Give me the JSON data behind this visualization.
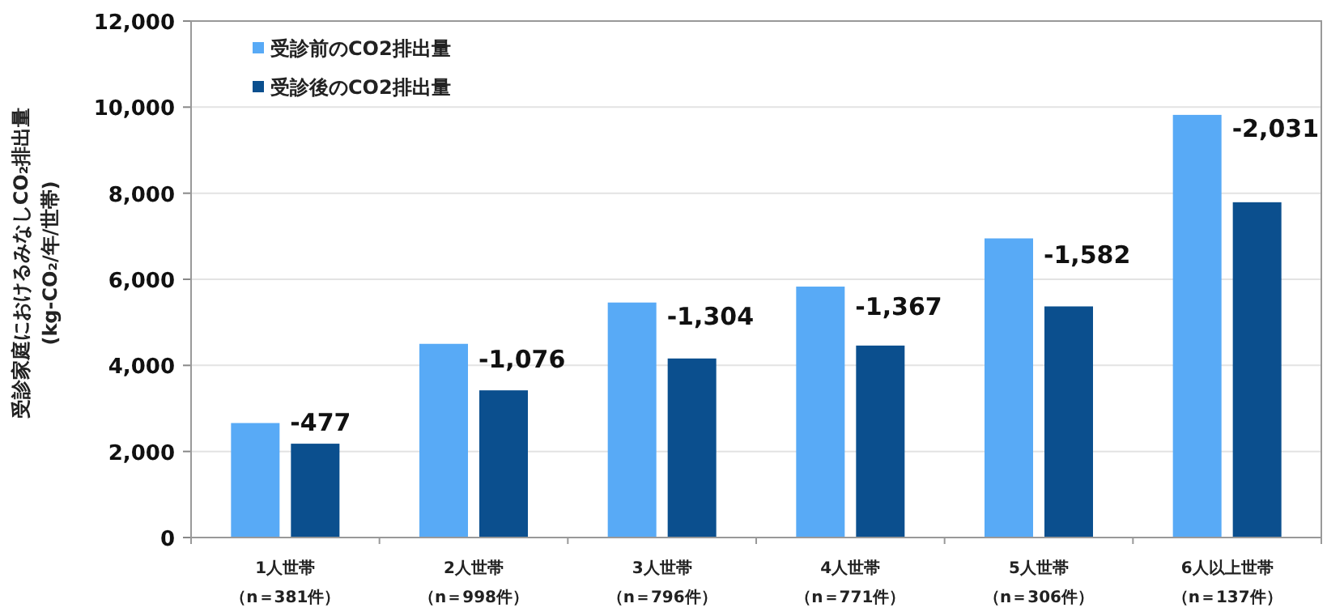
{
  "chart_data": {
    "type": "bar",
    "ylabel": "受診家庭におけるみなしCO₂排出量\n(kg-CO₂/年/世帯)",
    "categories": [
      "1人世帯（n＝381件）",
      "2人世帯（n＝998件）",
      "3人世帯（n＝796件）",
      "4人世帯（n＝771件）",
      "5人世帯（n＝306件）",
      "6人以上世帯（n＝137件）"
    ],
    "series": [
      {
        "name": "受診前のCO2排出量",
        "color": "#58aaf6",
        "values": [
          2660,
          4500,
          5460,
          5830,
          6950,
          9820
        ]
      },
      {
        "name": "受診後のCO2排出量",
        "color": "#0b4f8e",
        "values": [
          2180,
          3420,
          4160,
          4460,
          5370,
          7790
        ]
      }
    ],
    "ylim": [
      0,
      12000
    ],
    "yticks": [
      {
        "value": 0,
        "label": "0"
      },
      {
        "value": 2000,
        "label": "2,000"
      },
      {
        "value": 4000,
        "label": "4,000"
      },
      {
        "value": 6000,
        "label": "6,000"
      },
      {
        "value": 8000,
        "label": "8,000"
      },
      {
        "value": 10000,
        "label": "10,000"
      },
      {
        "value": 12000,
        "label": "12,000"
      }
    ],
    "grid": "y",
    "legend": "top left",
    "annotations": [
      {
        "text": "-477",
        "x": "1人世帯（n＝381件）",
        "y": 2716
      },
      {
        "text": "-1,076",
        "x": "2人世帯（n＝998件）",
        "y": 4180
      },
      {
        "text": "-1,304",
        "x": "3人世帯（n＝796件）",
        "y": 5180
      },
      {
        "text": "-1,367",
        "x": "4人世帯（n＝771件）",
        "y": 5400
      },
      {
        "text": "-1,582",
        "x": "5人世帯（n＝306件）",
        "y": 6600
      },
      {
        "text": "-2,031",
        "x": "6人以上世帯（n＝137件）",
        "y": 9540
      }
    ]
  }
}
